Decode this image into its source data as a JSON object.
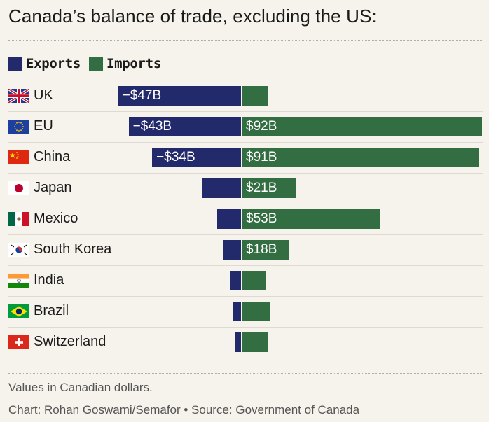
{
  "title": "Canada’s balance of trade, excluding the US:",
  "legend": {
    "exports": "Exports",
    "imports": "Imports"
  },
  "colors": {
    "exports": "#232a6b",
    "imports": "#336d42",
    "background": "#f6f3ec"
  },
  "chart_data": {
    "type": "bar",
    "orientation": "diverging-horizontal",
    "categories": [
      "UK",
      "EU",
      "China",
      "Japan",
      "Mexico",
      "South Korea",
      "India",
      "Brazil",
      "Switzerland"
    ],
    "series": [
      {
        "name": "Exports",
        "values": [
          -47,
          -43,
          -34,
          -15,
          -9,
          -7,
          -4,
          -3,
          -2.5
        ],
        "labels": [
          "−$47B",
          "−$43B",
          "−$34B",
          "",
          "",
          "",
          "",
          "",
          ""
        ]
      },
      {
        "name": "Imports",
        "values": [
          10,
          92,
          91,
          21,
          53,
          18,
          9,
          11,
          10
        ],
        "labels": [
          "",
          "$92B",
          "$91B",
          "$21B",
          "$53B",
          "$18B",
          "",
          "",
          ""
        ]
      }
    ],
    "flags": [
      "uk-flag-icon",
      "eu-flag-icon",
      "china-flag-icon",
      "japan-flag-icon",
      "mexico-flag-icon",
      "south-korea-flag-icon",
      "india-flag-icon",
      "brazil-flag-icon",
      "switzerland-flag-icon"
    ],
    "xlim": [
      -47,
      92
    ],
    "grid": false,
    "legend_position": "top-left"
  },
  "footer": {
    "note": "Values in Canadian dollars.",
    "credit": "Chart: Rohan Goswami/Semafor • Source: Government of Canada"
  }
}
